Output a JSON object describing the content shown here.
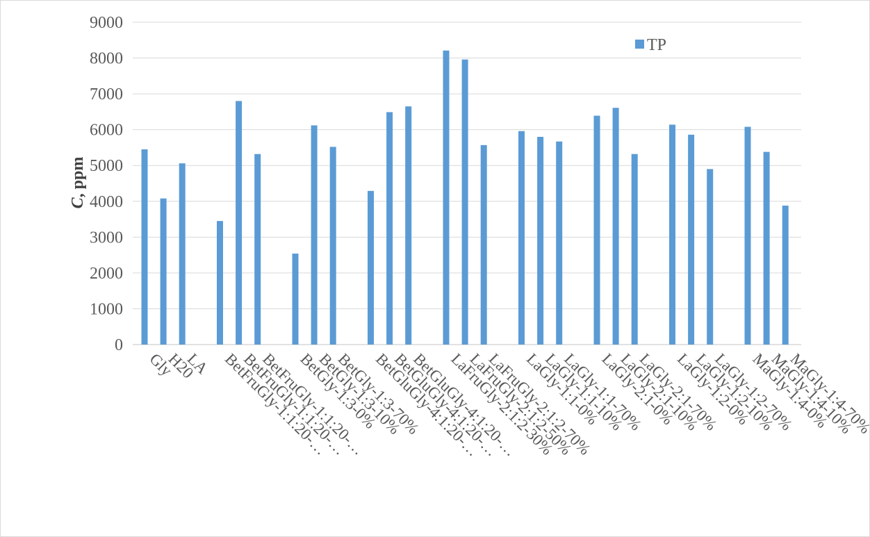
{
  "chart_data": {
    "type": "bar",
    "ylabel_italic": "C",
    "ylabel_rest": ", ppm",
    "ylim": [
      0,
      9000
    ],
    "yticks": [
      "0",
      "1000",
      "2000",
      "3000",
      "4000",
      "5000",
      "6000",
      "7000",
      "8000",
      "9000"
    ],
    "grid": true,
    "legend_position": "top-right",
    "bar_color": "#5B9BD5",
    "groups": [
      {
        "categories": [
          "Gly",
          "H20",
          "LA"
        ],
        "values": [
          5450,
          4080,
          5060
        ]
      },
      {
        "categories": [
          "BetFruGly-1:1:20-…",
          "BetFruGly-1:1:20-…",
          "BetFruGly-1:1:20-…"
        ],
        "values": [
          3450,
          6800,
          5320
        ]
      },
      {
        "categories": [
          "BetGly-1:3-0%",
          "BetGly-1:3-10%",
          "BetGly-1:3-70%"
        ],
        "values": [
          2540,
          6120,
          5520
        ]
      },
      {
        "categories": [
          "BetGluGly-4:1:20-…",
          "BetGluGly-4:1:20-…",
          "BetGluGly-4:1:20-…"
        ],
        "values": [
          4290,
          6490,
          6650
        ]
      },
      {
        "categories": [
          "LaFruGly-2:1:2-30%",
          "LaFruGly-2:1:2-50%",
          "LaFruGly-2:1:2-70%"
        ],
        "values": [
          8210,
          7960,
          5570
        ]
      },
      {
        "categories": [
          "LaGly-1:1-0%",
          "LaGly-1:1-10%",
          "LaGly-1:1-70%"
        ],
        "values": [
          5960,
          5800,
          5670
        ]
      },
      {
        "categories": [
          "LaGly-2:1-0%",
          "LaGly-2:1-10%",
          "LaGly-2:1-70%"
        ],
        "values": [
          6390,
          6610,
          5320
        ]
      },
      {
        "categories": [
          "LaGly-1:2-0%",
          "LaGly-1:2-10%",
          "LaGly-1:2-70%"
        ],
        "values": [
          6140,
          5860,
          4900
        ]
      },
      {
        "categories": [
          "MaGly-1:4-0%",
          "MaGly-1:4-10%",
          "MaGly-1:4-70%"
        ],
        "values": [
          6080,
          5380,
          3880
        ]
      }
    ],
    "series": [
      {
        "name": "TP"
      }
    ]
  }
}
